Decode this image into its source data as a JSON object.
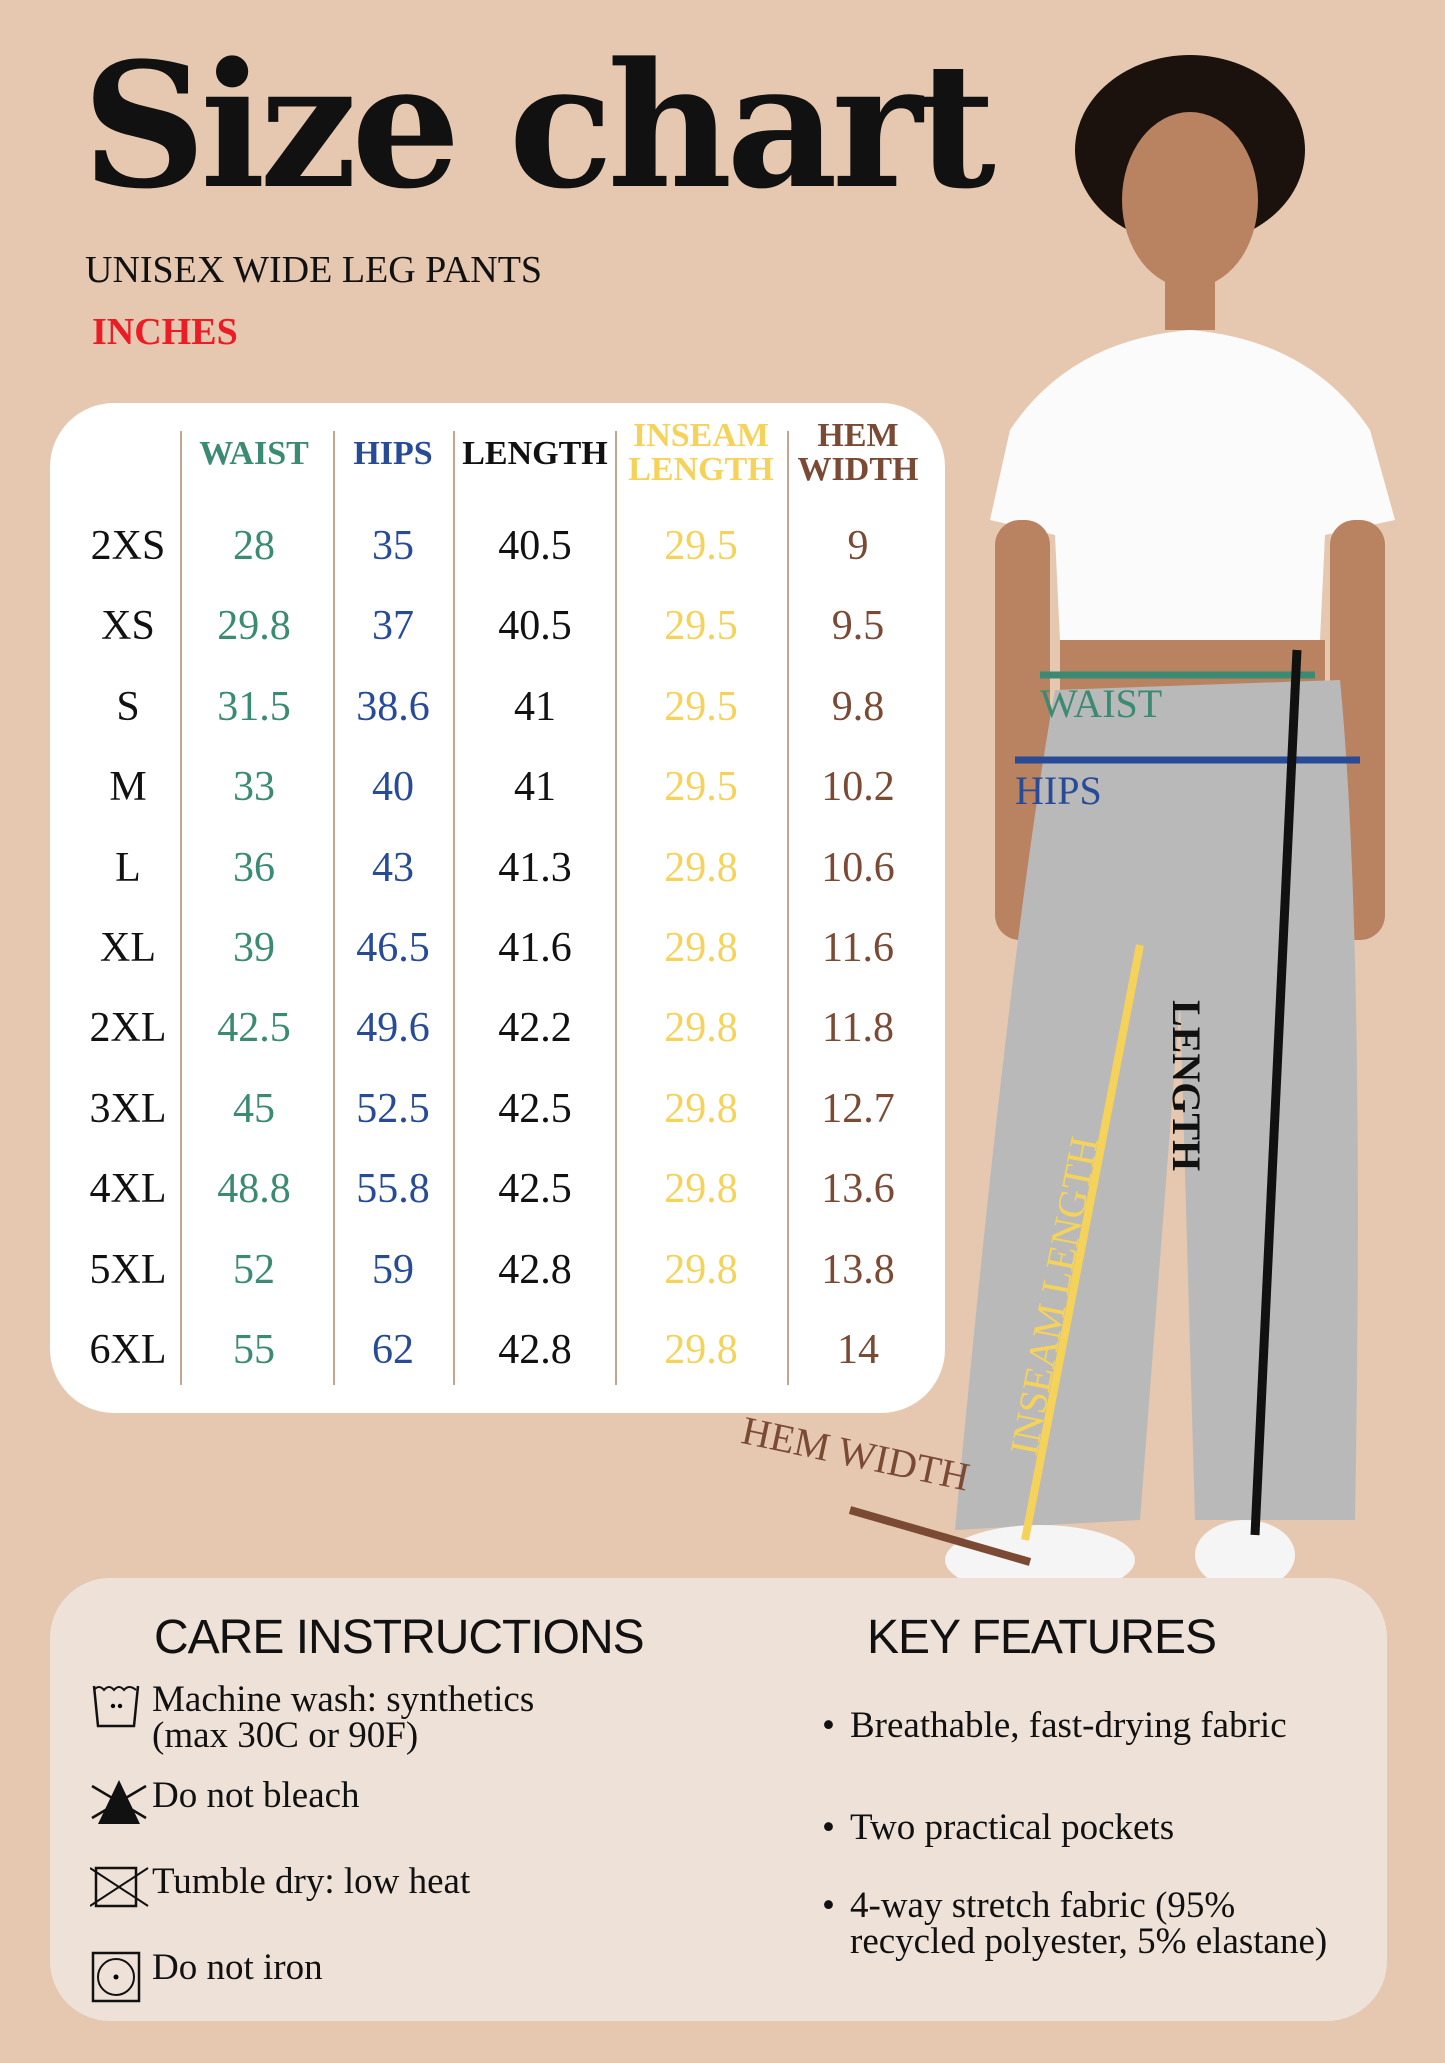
{
  "title": "Size chart",
  "subtitle": "UNISEX WIDE LEG PANTS",
  "unit": "INCHES",
  "colors": {
    "background": "#e6c8b1",
    "waist": "#3b8a73",
    "hips": "#274b96",
    "length": "#111111",
    "inseam": "#f5d35a",
    "hem": "#7a4a35",
    "unit": "#ec1c24"
  },
  "table": {
    "headers": [
      "WAIST",
      "HIPS",
      "LENGTH",
      "INSEAM\nLENGTH",
      "HEM\nWIDTH"
    ],
    "rows": [
      {
        "size": "2XS",
        "values": [
          "28",
          "35",
          "40.5",
          "29.5",
          "9"
        ]
      },
      {
        "size": "XS",
        "values": [
          "29.8",
          "37",
          "40.5",
          "29.5",
          "9.5"
        ]
      },
      {
        "size": "S",
        "values": [
          "31.5",
          "38.6",
          "41",
          "29.5",
          "9.8"
        ]
      },
      {
        "size": "M",
        "values": [
          "33",
          "40",
          "41",
          "29.5",
          "10.2"
        ]
      },
      {
        "size": "L",
        "values": [
          "36",
          "43",
          "41.3",
          "29.8",
          "10.6"
        ]
      },
      {
        "size": "XL",
        "values": [
          "39",
          "46.5",
          "41.6",
          "29.8",
          "11.6"
        ]
      },
      {
        "size": "2XL",
        "values": [
          "42.5",
          "49.6",
          "42.2",
          "29.8",
          "11.8"
        ]
      },
      {
        "size": "3XL",
        "values": [
          "45",
          "52.5",
          "42.5",
          "29.8",
          "12.7"
        ]
      },
      {
        "size": "4XL",
        "values": [
          "48.8",
          "55.8",
          "42.5",
          "29.8",
          "13.6"
        ]
      },
      {
        "size": "5XL",
        "values": [
          "52",
          "59",
          "42.8",
          "29.8",
          "13.8"
        ]
      },
      {
        "size": "6XL",
        "values": [
          "55",
          "62",
          "42.8",
          "29.8",
          "14"
        ]
      }
    ]
  },
  "figure_labels": {
    "waist": "WAIST",
    "hips": "HIPS",
    "length": "LENGTH",
    "inseam": "INSEAM LENGTH",
    "hem": "HEM WIDTH"
  },
  "care": {
    "title": "CARE INSTRUCTIONS",
    "items": [
      {
        "icon": "machine-wash-30-icon",
        "text": "Machine wash: synthetics\n(max 30C or 90F)"
      },
      {
        "icon": "do-not-bleach-icon",
        "text": "Do not bleach"
      },
      {
        "icon": "tumble-dry-low-icon",
        "text": "Tumble dry: low heat"
      },
      {
        "icon": "do-not-iron-icon",
        "text": "Do not iron"
      }
    ]
  },
  "features": {
    "title": "KEY FEATURES",
    "items": [
      "Breathable, fast-drying fabric",
      "Two practical pockets",
      "4-way stretch fabric (95% recycled polyester, 5% elastane)"
    ]
  }
}
